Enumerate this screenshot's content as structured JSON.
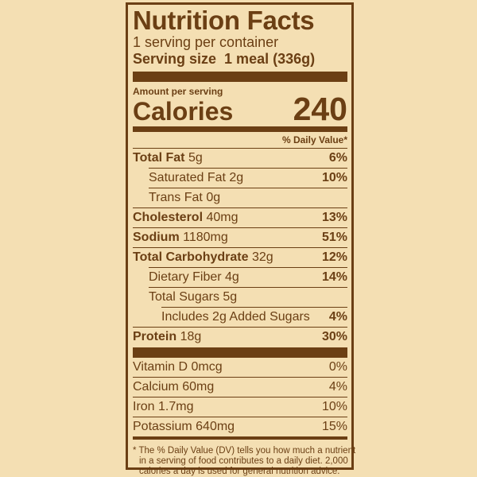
{
  "title": "Nutrition Facts",
  "servings_per_container": "1 serving per container",
  "serving_size": {
    "label": "Serving size",
    "value": "1 meal (336g)"
  },
  "amount_per_serving": "Amount per serving",
  "calories": {
    "label": "Calories",
    "value": "240"
  },
  "daily_value_header": "% Daily Value*",
  "nutrients": [
    {
      "name": "Total Fat",
      "amount": "5g",
      "dv": "6%"
    },
    {
      "name": "Saturated Fat",
      "amount": "2g",
      "dv": "10%"
    },
    {
      "name": "Trans Fat",
      "amount": "0g"
    },
    {
      "name": "Cholesterol",
      "amount": "40mg",
      "dv": "13%"
    },
    {
      "name": "Sodium",
      "amount": "1180mg",
      "dv": "51%"
    },
    {
      "name": "Total Carbohydrate",
      "amount": "32g",
      "dv": "12%"
    },
    {
      "name": "Dietary Fiber",
      "amount": "4g",
      "dv": "14%"
    },
    {
      "name": "Total Sugars",
      "amount": "5g"
    },
    {
      "name": "Includes 2g Added Sugars",
      "dv": "4%"
    },
    {
      "name": "Protein",
      "amount": "18g",
      "dv": "30%"
    }
  ],
  "vitamins": [
    {
      "name": "Vitamin D",
      "amount": "0mcg",
      "dv": "0%"
    },
    {
      "name": "Calcium",
      "amount": "60mg",
      "dv": "4%"
    },
    {
      "name": "Iron",
      "amount": "1.7mg",
      "dv": "10%"
    },
    {
      "name": "Potassium",
      "amount": "640mg",
      "dv": "15%"
    }
  ],
  "footnote": [
    "* The % Daily Value (DV) tells you how much a nutrient",
    "in a serving of food contributes to a daily diet. 2,000",
    "calories a day is used for general nutrition advice."
  ]
}
